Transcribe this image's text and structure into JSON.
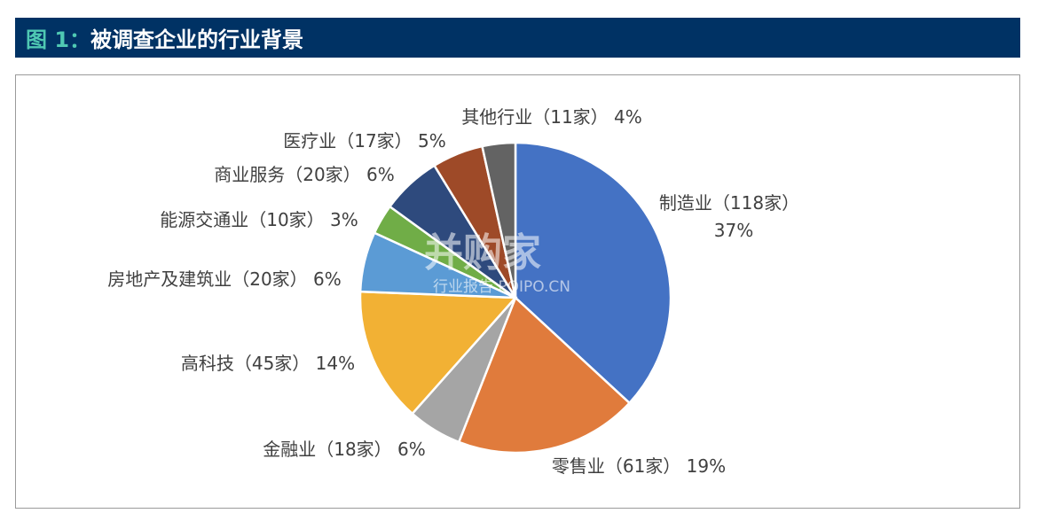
{
  "header": {
    "figure_label": "图 1：",
    "title": "被调查企业的行业背景"
  },
  "watermark": {
    "brand": "并购家",
    "subtitle": "行业报告 POIPO.CN"
  },
  "colors": {
    "header_bg": "#003264",
    "figure_label": "#4fc9b3"
  },
  "chart_data": {
    "type": "pie",
    "title": "",
    "slices": [
      {
        "name": "制造业",
        "count": 118,
        "percent": 37,
        "color": "#4472c4",
        "label_line1": "制造业（118家）",
        "label_line2": "37%"
      },
      {
        "name": "零售业",
        "count": 61,
        "percent": 19,
        "color": "#e07b3c",
        "label_line1": "零售业（61家） 19%",
        "label_line2": ""
      },
      {
        "name": "金融业",
        "count": 18,
        "percent": 6,
        "color": "#a5a5a5",
        "label_line1": "金融业（18家） 6%",
        "label_line2": ""
      },
      {
        "name": "高科技",
        "count": 45,
        "percent": 14,
        "color": "#f2b134",
        "label_line1": "高科技（45家） 14%",
        "label_line2": ""
      },
      {
        "name": "房地产及建筑业",
        "count": 20,
        "percent": 6,
        "color": "#5b9bd5",
        "label_line1": "房地产及建筑业（20家） 6%",
        "label_line2": ""
      },
      {
        "name": "能源交通业",
        "count": 10,
        "percent": 3,
        "color": "#70ad47",
        "label_line1": "能源交通业（10家） 3%",
        "label_line2": ""
      },
      {
        "name": "商业服务",
        "count": 20,
        "percent": 6,
        "color": "#2e4a7d",
        "label_line1": "商业服务（20家） 6%",
        "label_line2": ""
      },
      {
        "name": "医疗业",
        "count": 17,
        "percent": 5,
        "color": "#9e4a28",
        "label_line1": "医疗业（17家） 5%",
        "label_line2": ""
      },
      {
        "name": "其他行业",
        "count": 11,
        "percent": 4,
        "color": "#636363",
        "label_line1": "其他行业（11家） 4%",
        "label_line2": ""
      }
    ]
  }
}
